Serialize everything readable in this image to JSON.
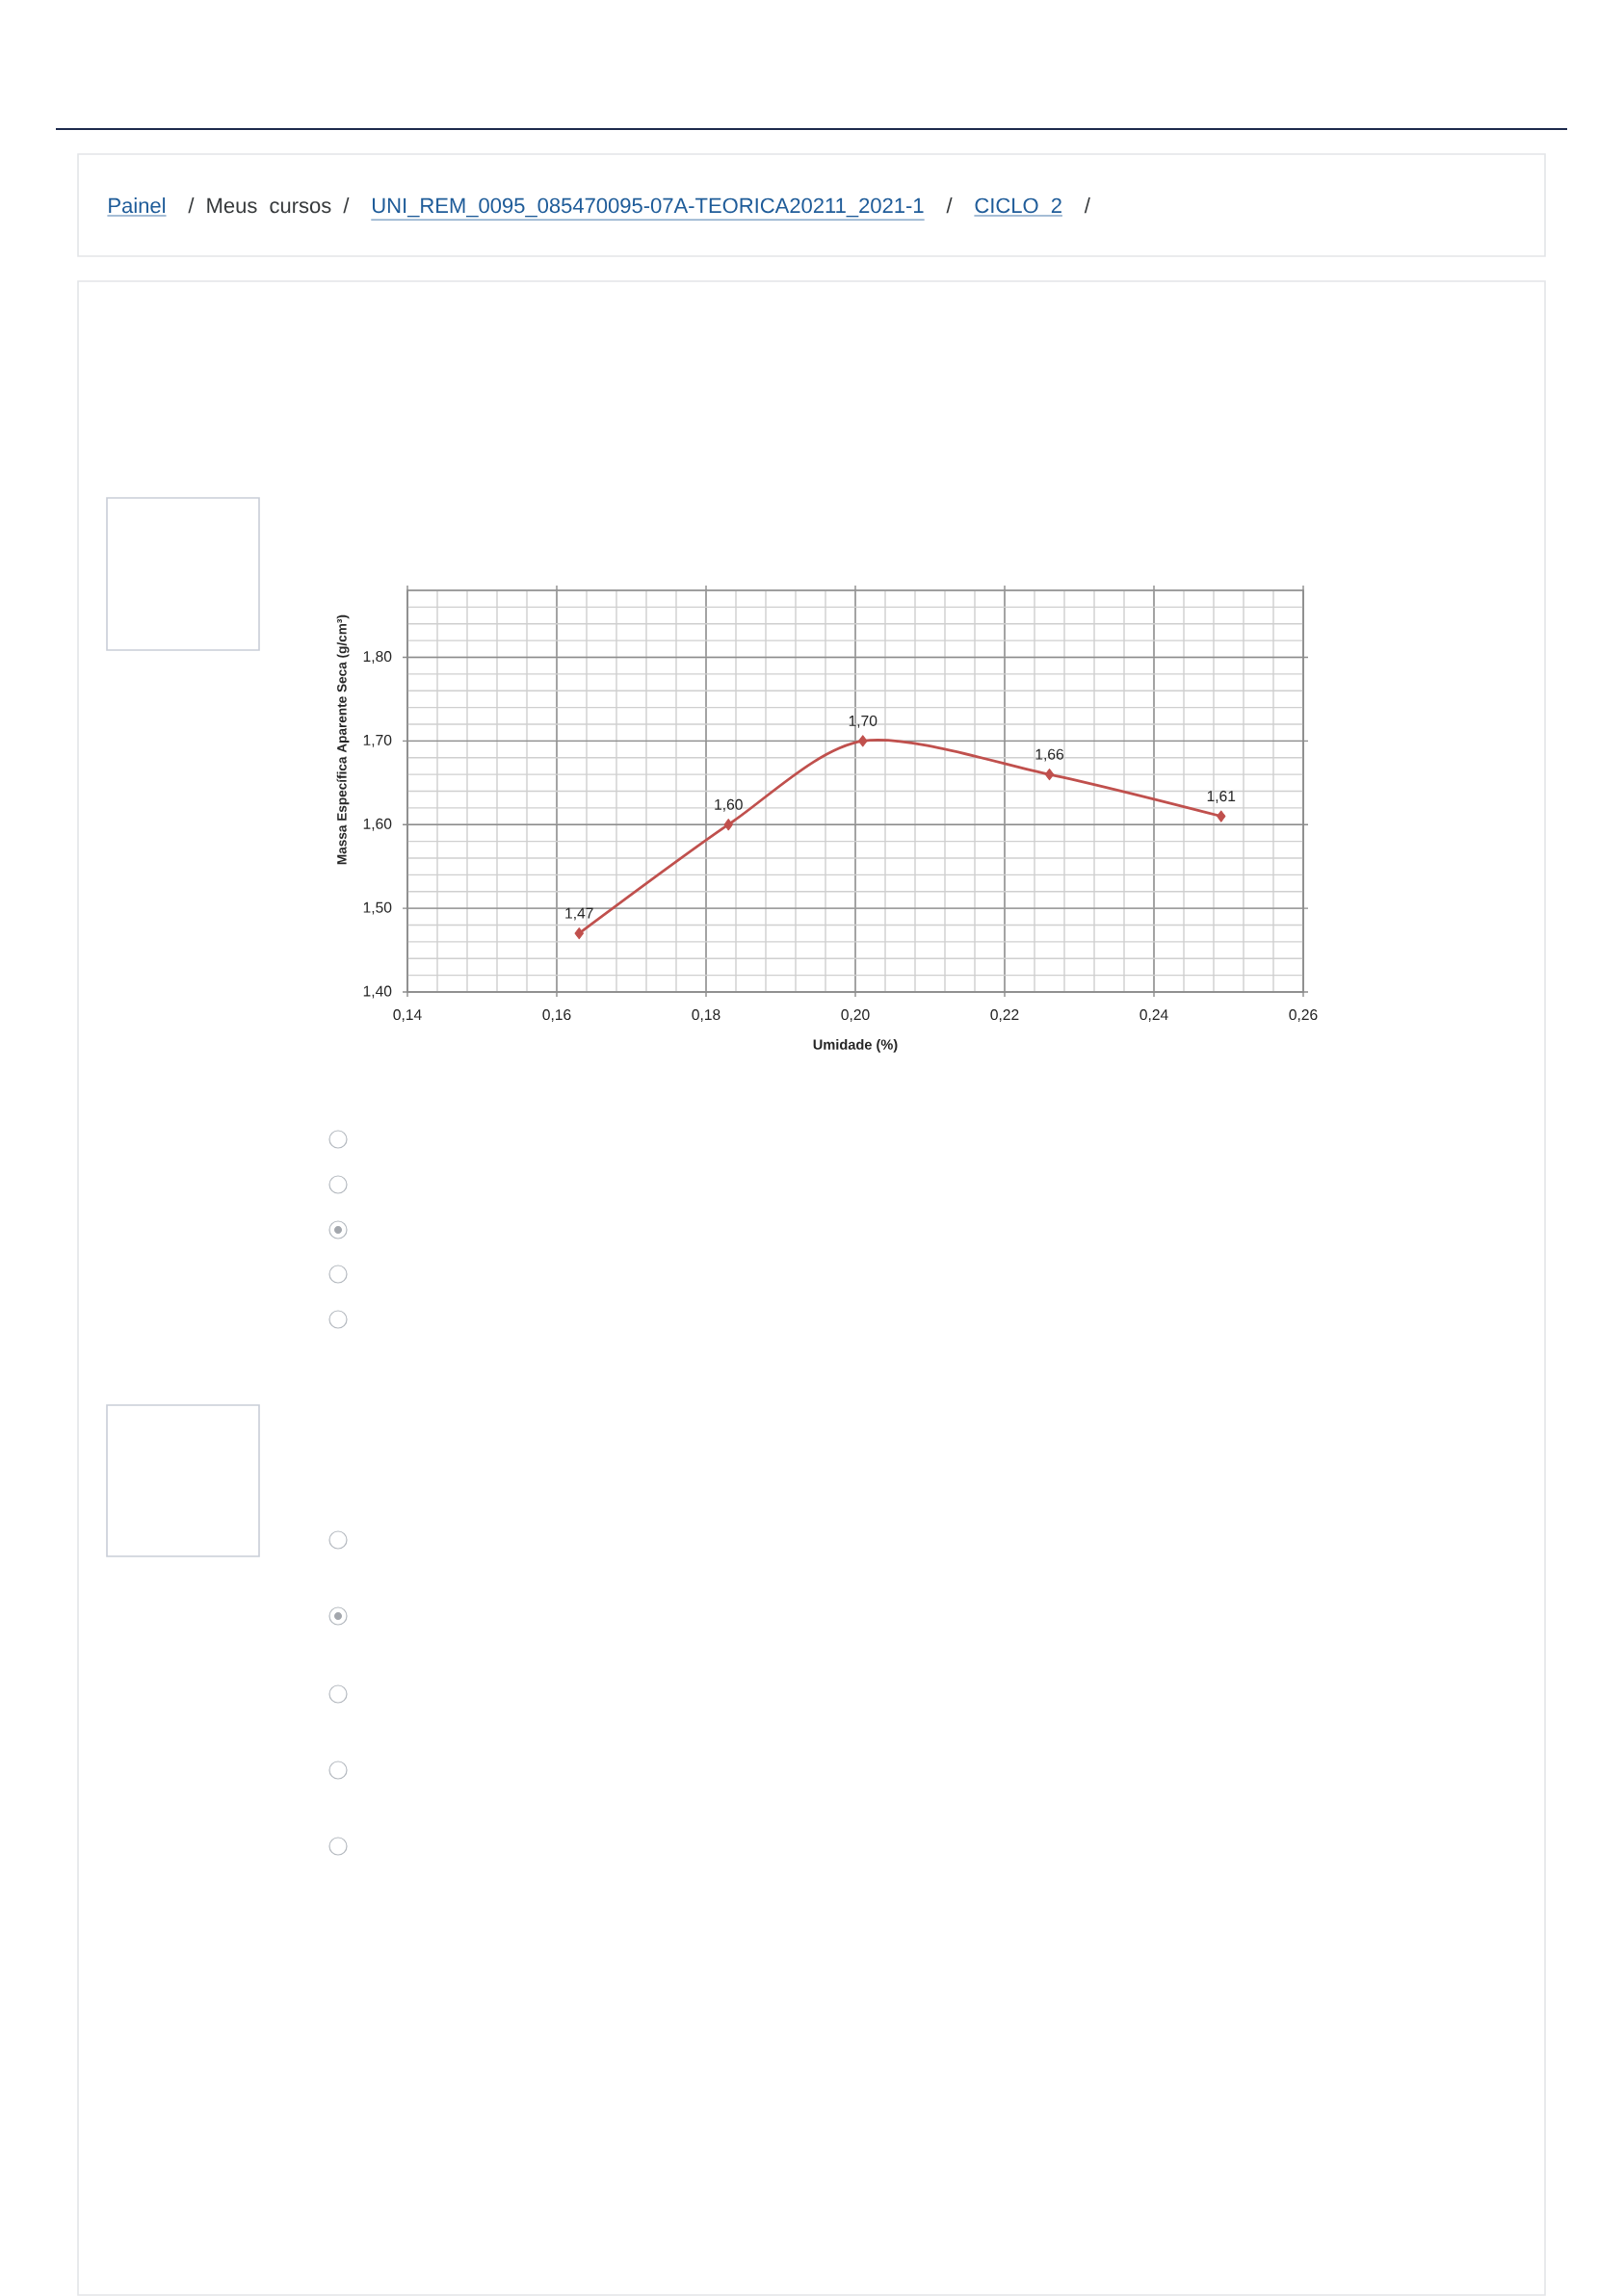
{
  "chart_data": {
    "type": "line",
    "xlabel": "Umidade (%)",
    "ylabel": "Massa Específica Aparente Seca (g/cm³)",
    "x": [
      0.163,
      0.183,
      0.201,
      0.226,
      0.249
    ],
    "values": [
      1.47,
      1.6,
      1.7,
      1.66,
      1.61
    ],
    "value_labels": [
      "1,47",
      "1,60",
      "1,70",
      "1,66",
      "1,61"
    ],
    "color": "#c0504d",
    "marker": "diamond",
    "line_style": "solid",
    "grid": true,
    "xlim": [
      0.14,
      0.26
    ],
    "xticks": [
      {
        "value": 0.14,
        "label": "0,14"
      },
      {
        "value": 0.16,
        "label": "0,16"
      },
      {
        "value": 0.18,
        "label": "0,18"
      },
      {
        "value": 0.2,
        "label": "0,20"
      },
      {
        "value": 0.22,
        "label": "0,22"
      },
      {
        "value": 0.24,
        "label": "0,24"
      },
      {
        "value": 0.26,
        "label": "0,26"
      }
    ],
    "ylim": [
      1.4,
      1.88
    ],
    "yticks": [
      {
        "value": 1.4,
        "label": "1,40"
      },
      {
        "value": 1.5,
        "label": "1,50"
      },
      {
        "value": 1.6,
        "label": "1,60"
      },
      {
        "value": 1.7,
        "label": "1,70"
      },
      {
        "value": 1.8,
        "label": "1,80"
      }
    ],
    "annotations": [
      "Painel",
      "/ Meus cursos /",
      "UNI_REM_0095_085470095-07A-TEORICA20211_2021-1",
      "/",
      "CICLO 2",
      "/"
    ]
  }
}
